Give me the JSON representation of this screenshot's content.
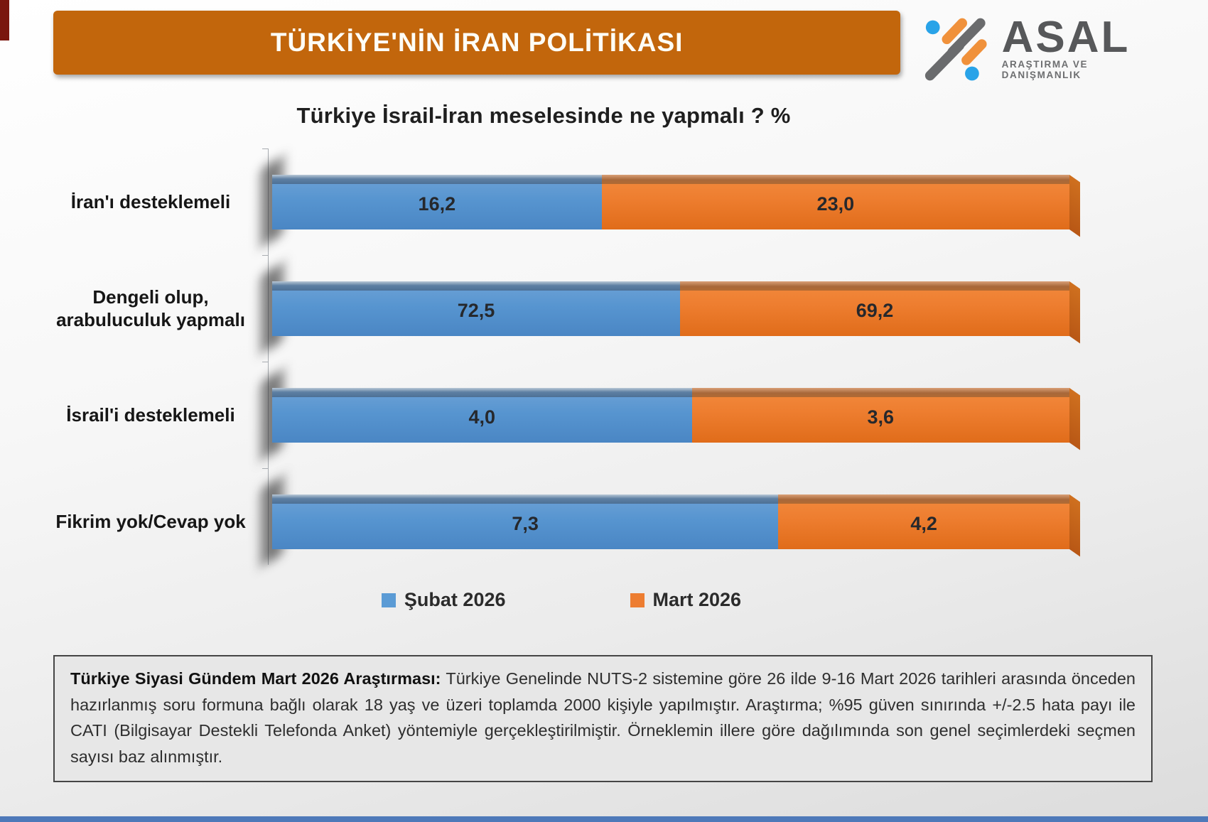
{
  "banner": {
    "title": "TÜRKİYE'NİN İRAN POLİTİKASI",
    "bg_color": "#C2660C"
  },
  "logo": {
    "name": "ASAL",
    "subtitle": "ARAŞTIRMA VE DANIŞMANLIK",
    "colors": {
      "orange": "#F0913B",
      "gray": "#6A6B6D",
      "blue": "#29A3E8",
      "text": "#57585A"
    }
  },
  "chart_data": {
    "type": "bar",
    "orientation": "horizontal",
    "stacked_100_percent": true,
    "title": "Türkiye İsrail-İran meselesinde ne yapmalı ? %",
    "categories": [
      "İran'ı desteklemeli",
      "Dengeli olup, arabuluculuk yapmalı",
      "İsrail'i desteklemeli",
      "Fikrim yok/Cevap yok"
    ],
    "series": [
      {
        "name": "Şubat 2026",
        "color": "#5B9BD5",
        "values": [
          16.2,
          72.5,
          4.0,
          7.3
        ],
        "labels": [
          "16,2",
          "72,5",
          "4,0",
          "7,3"
        ]
      },
      {
        "name": "Mart 2026",
        "color": "#ED7D31",
        "values": [
          23.0,
          69.2,
          3.6,
          4.2
        ],
        "labels": [
          "23,0",
          "69,2",
          "3,6",
          "4,2"
        ]
      }
    ],
    "legend_position": "bottom",
    "grid": false,
    "value_labels_inside_bars": true
  },
  "footnote": {
    "lead": "Türkiye Siyasi Gündem Mart 2026 Araştırması:",
    "body": " Türkiye Genelinde NUTS-2 sistemine göre 26 ilde 9-16 Mart 2026 tarihleri arasında önceden hazırlanmış soru formuna bağlı olarak 18 yaş ve üzeri toplamda 2000 kişiyle yapılmıştır. Araştırma; %95 güven sınırında +/-2.5 hata payı ile CATI (Bilgisayar Destekli Telefonda Anket) yöntemiyle gerçekleştirilmiştir. Örneklemin illere göre dağılımında son genel seçimlerdeki seçmen sayısı baz alınmıştır."
  }
}
